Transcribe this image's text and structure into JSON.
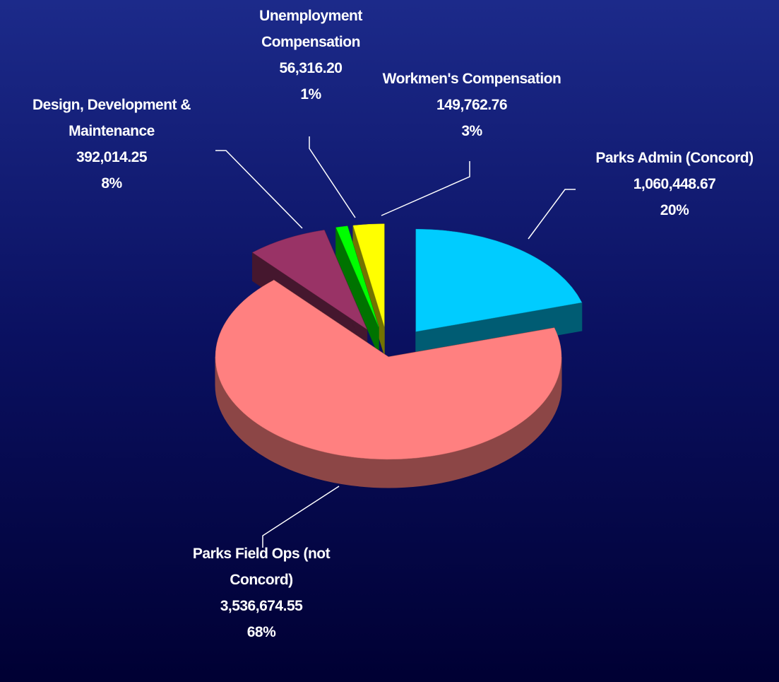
{
  "chart_data": {
    "type": "pie",
    "categories": [
      "Parks Admin (Concord)",
      "Parks Field Ops (not Concord)",
      "Design, Development & Maintenance",
      "Unemployment Compensation",
      "Workmen's Compensation"
    ],
    "values": [
      1060448.67,
      3536674.55,
      392014.25,
      56316.2,
      149762.76
    ],
    "value_labels": [
      "1,060,448.67",
      "3,536,674.55",
      "392,014.25",
      "56,316.20",
      "149,762.76"
    ],
    "percent_labels": [
      "20%",
      "68%",
      "8%",
      "1%",
      "3%"
    ],
    "colors": [
      "#00ccff",
      "#ff8080",
      "#993366",
      "#00ff00",
      "#ffff00"
    ]
  }
}
